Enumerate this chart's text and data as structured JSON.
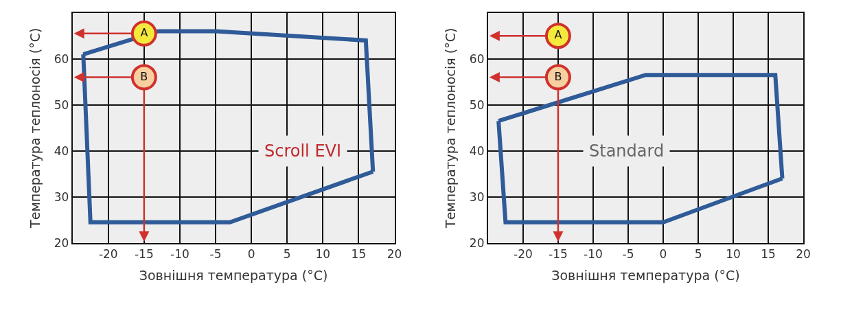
{
  "chart_data": [
    {
      "type": "line",
      "xlabel": "Зовнішня температура (°C)",
      "ylabel": "Температура теплоносія (°C)",
      "xlim": [
        -25,
        20
      ],
      "xticks": [
        {
          "value": -25,
          "label": null
        },
        -20,
        -15,
        -10,
        -5,
        0,
        5,
        10,
        15,
        20
      ],
      "ylim": [
        20,
        70
      ],
      "yticks": [
        20,
        30,
        40,
        50,
        60,
        {
          "value": 70,
          "label": null
        }
      ],
      "grid": true,
      "annotations": [
        "Scroll EVI"
      ],
      "series": [
        {
          "color": "#2f5b98",
          "line_style": "solid",
          "x": [
            -23.5,
            -13,
            -5,
            16,
            17
          ],
          "values": [
            61,
            66,
            66,
            64,
            35.5
          ]
        },
        {
          "color": "#2f5b98",
          "line_style": "solid",
          "x": [
            -23.5,
            -22.5,
            -3,
            17
          ],
          "values": [
            61,
            24.5,
            24.5,
            35.5
          ]
        },
        {
          "type": "scatter",
          "marker": "circle",
          "x": [
            -15,
            -15
          ],
          "values": [
            65.5,
            56
          ],
          "colors": [
            "#f5ea3c",
            "#f7cfa0"
          ],
          "value_labels": [
            "A",
            "B"
          ]
        }
      ]
    },
    {
      "type": "line",
      "xlabel": "Зовнішня температура (°C)",
      "ylabel": "Температура теплоносія (°C)",
      "xlim": [
        -25,
        20
      ],
      "xticks": [
        {
          "value": -25,
          "label": null
        },
        -20,
        -15,
        -10,
        -5,
        0,
        5,
        10,
        15,
        20
      ],
      "ylim": [
        20,
        70
      ],
      "yticks": [
        20,
        30,
        40,
        50,
        60,
        {
          "value": 70,
          "label": null
        }
      ],
      "grid": true,
      "annotations": [
        "Standard"
      ],
      "series": [
        {
          "color": "#2f5b98",
          "line_style": "solid",
          "x": [
            -23.5,
            -2.5,
            16,
            17
          ],
          "values": [
            46.5,
            56.5,
            56.5,
            34
          ]
        },
        {
          "color": "#2f5b98",
          "line_style": "solid",
          "x": [
            -23.5,
            -22.5,
            0,
            17
          ],
          "values": [
            46.5,
            24.5,
            24.5,
            34
          ]
        },
        {
          "type": "scatter",
          "marker": "circle",
          "x": [
            -15,
            -15
          ],
          "values": [
            65,
            56
          ],
          "colors": [
            "#f5ea3c",
            "#f7cfa0"
          ],
          "value_labels": [
            "A",
            "B"
          ]
        }
      ]
    }
  ]
}
